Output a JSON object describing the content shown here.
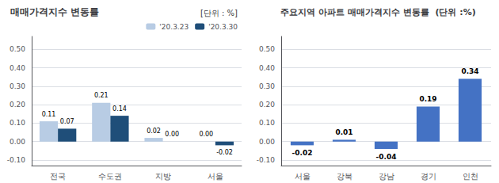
{
  "chart_data": [
    {
      "type": "bar",
      "title": "매매가격지수 변동률",
      "subtitle": "[단위 : %]",
      "categories": [
        "전국",
        "수도권",
        "지방",
        "서울"
      ],
      "series": [
        {
          "name": "'20.3.23",
          "color": "#b8cce4",
          "values": [
            0.11,
            0.21,
            0.02,
            0.0
          ],
          "value_labels": [
            "0.11",
            "0.21",
            "0.02",
            "0.00"
          ]
        },
        {
          "name": "'20.3.30",
          "color": "#1f4e79",
          "values": [
            0.07,
            0.14,
            0.0,
            -0.02
          ],
          "value_labels": [
            "0.07",
            "0.14",
            "0.00",
            "-0.02"
          ]
        }
      ],
      "ylim": [
        -0.13,
        0.57
      ],
      "yticks": [
        {
          "value": -0.1,
          "label": "-0.10"
        },
        {
          "value": 0.0,
          "label": "0.00"
        },
        {
          "value": 0.1,
          "label": "0.10"
        },
        {
          "value": 0.2,
          "label": "0.20"
        },
        {
          "value": 0.3,
          "label": "0.30"
        },
        {
          "value": 0.4,
          "label": "0.40"
        },
        {
          "value": 0.5,
          "label": "0.50"
        }
      ],
      "grid": true,
      "legend": "upper right",
      "data_labels": true
    },
    {
      "type": "bar",
      "title": "주요지역 아파트 매매가격지수 변동률  (단위 :%)",
      "categories": [
        "서울",
        "강북",
        "강남",
        "경기",
        "인천"
      ],
      "values": [
        -0.02,
        0.01,
        -0.04,
        0.19,
        0.34
      ],
      "value_labels": [
        "-0.02",
        "0.01",
        "-0.04",
        "0.19",
        "0.34"
      ],
      "color": "#4472c4",
      "ylim": [
        -0.13,
        0.57
      ],
      "yticks": [
        {
          "value": -0.1,
          "label": "-0.10"
        },
        {
          "value": 0.0,
          "label": "0.00"
        },
        {
          "value": 0.1,
          "label": "0.10"
        },
        {
          "value": 0.2,
          "label": "0.20"
        },
        {
          "value": 0.3,
          "label": "0.30"
        },
        {
          "value": 0.4,
          "label": "0.40"
        },
        {
          "value": 0.5,
          "label": "0.50"
        }
      ],
      "grid": true,
      "data_labels": true
    }
  ]
}
